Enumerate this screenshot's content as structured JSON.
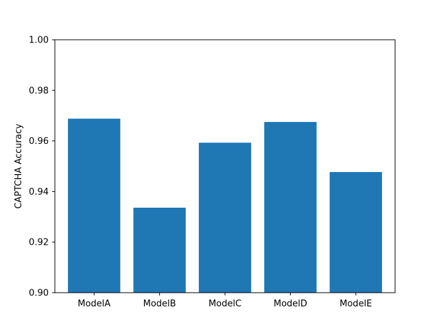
{
  "chart_data": {
    "type": "bar",
    "categories": [
      "ModelA",
      "ModelB",
      "ModelC",
      "ModelD",
      "ModelE"
    ],
    "values": [
      0.9688,
      0.9336,
      0.9593,
      0.9675,
      0.9477
    ],
    "title": "",
    "xlabel": "",
    "ylabel": "CAPTCHA Accuracy",
    "ylim": [
      0.9,
      1.0
    ],
    "yticks": [
      "0.90",
      "0.92",
      "0.94",
      "0.96",
      "0.98",
      "1.00"
    ],
    "grid": false,
    "bar_color": "#1f77b4"
  }
}
